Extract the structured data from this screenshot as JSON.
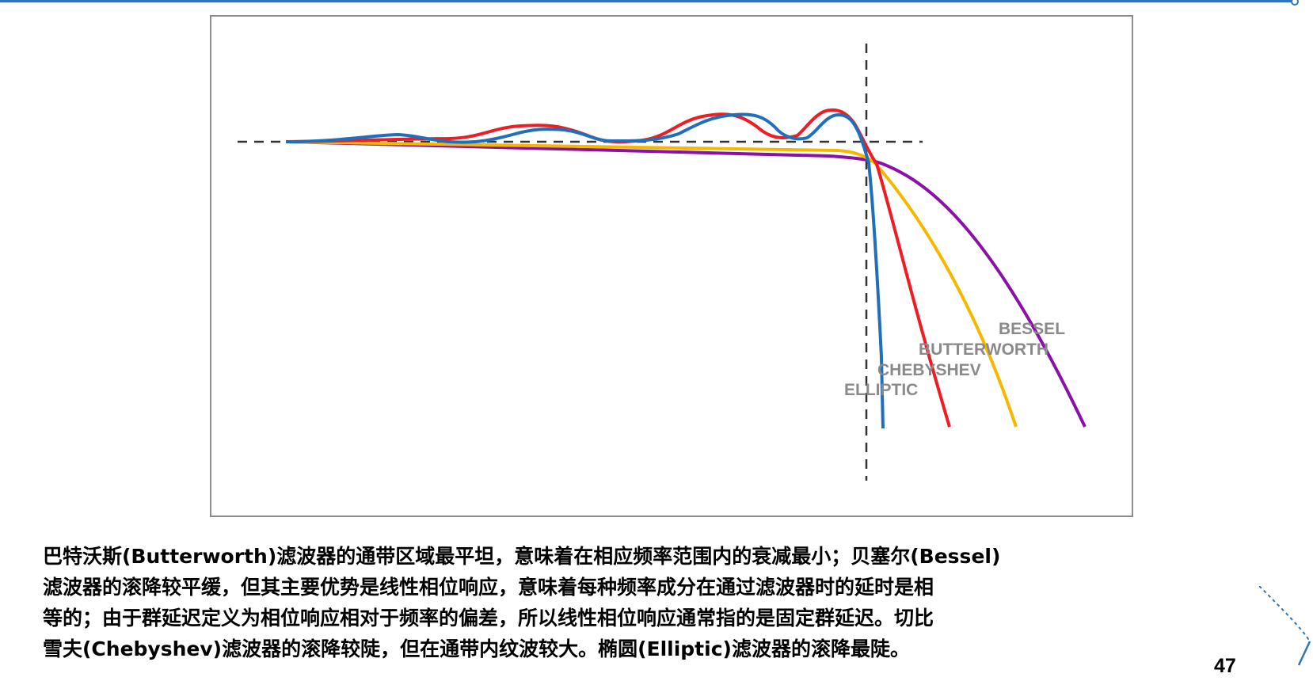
{
  "figure": {
    "curves": [
      {
        "name": "BESSEL",
        "color": "#8b10a8"
      },
      {
        "name": "BUTTERWORTH",
        "color": "#f5b800"
      },
      {
        "name": "CHEBYSHEV",
        "color": "#ee1c24"
      },
      {
        "name": "ELLIPTIC",
        "color": "#1f6fba"
      }
    ],
    "labels": {
      "bessel": "BESSEL",
      "butterworth": "BUTTERWORTH",
      "chebyshev": "CHEBYSHEV",
      "elliptic": "ELLIPTIC"
    },
    "guide_color": "#333333"
  },
  "caption": {
    "line1": "巴特沃斯(Butterworth)滤波器的通带区域最平坦，意味着在相应频率范围内的衰减最小；贝塞尔(Bessel)",
    "line2": "滤波器的滚降较平缓，但其主要优势是线性相位响应，意味着每种频率成分在通过滤波器时的延时是相",
    "line3": "等的；由于群延迟定义为相位响应相对于频率的偏差，所以线性相位响应通常指的是固定群延迟。切比",
    "line4": "雪夫(Chebyshev)滤波器的滚降较陡，但在通带内纹波较大。椭圆(Elliptic)滤波器的滚降最陡。"
  },
  "page_number": "47",
  "accent_color": "#2f73c0"
}
